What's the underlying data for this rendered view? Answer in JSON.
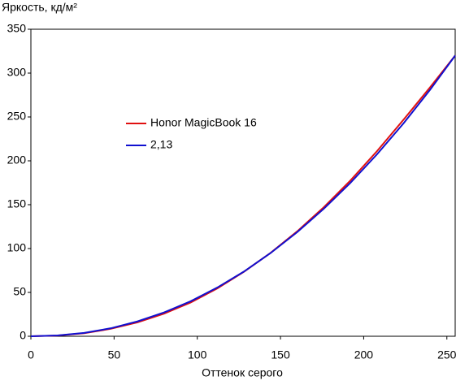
{
  "chart_data": {
    "type": "line",
    "y_label": "Яркость, кд/м²",
    "x_label": "Оттенок серого",
    "x": [
      0,
      16,
      32,
      48,
      64,
      80,
      96,
      112,
      128,
      144,
      160,
      176,
      192,
      208,
      224,
      240,
      255
    ],
    "series": [
      {
        "name": "Honor MagicBook 16",
        "color": "#e01010",
        "values": [
          0,
          0.8,
          3.5,
          8.5,
          15.8,
          25.8,
          38.5,
          54.5,
          73.5,
          95,
          119.5,
          147,
          177.5,
          211,
          247,
          284,
          320
        ]
      },
      {
        "name": "2,13",
        "color": "#1010d0",
        "values": [
          0,
          0.88,
          3.85,
          9.1,
          16.9,
          27.1,
          39.9,
          55.5,
          73.7,
          94.8,
          118.6,
          145.3,
          174.8,
          207.4,
          242.8,
          281.2,
          320
        ]
      }
    ],
    "xlim": [
      0,
      255
    ],
    "ylim": [
      0,
      350
    ],
    "xticks": [
      0,
      50,
      100,
      150,
      200,
      250
    ],
    "yticks": [
      0,
      50,
      100,
      150,
      200,
      250,
      300,
      350
    ]
  }
}
